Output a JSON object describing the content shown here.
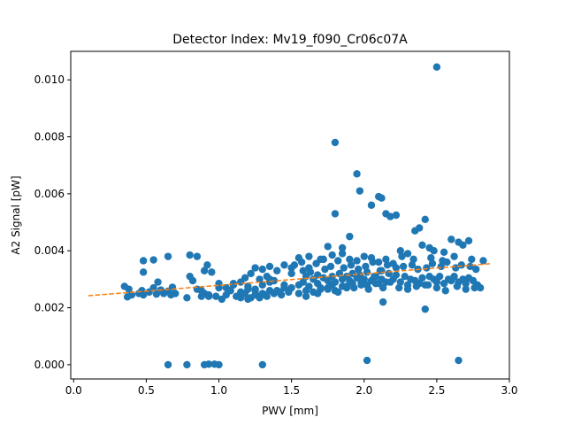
{
  "chart_data": {
    "type": "scatter",
    "title": "Detector Index: Mv19_f090_Cr06c07A",
    "xlabel": "PWV [mm]",
    "ylabel": "A2 Signal [pW]",
    "xlim": [
      -0.02,
      3.0
    ],
    "ylim": [
      -0.0005,
      0.011
    ],
    "xticks": [
      0.0,
      0.5,
      1.0,
      1.5,
      2.0,
      2.5,
      3.0
    ],
    "xtick_labels": [
      "0.0",
      "0.5",
      "1.0",
      "1.5",
      "2.0",
      "2.5",
      "3.0"
    ],
    "yticks": [
      0.0,
      0.002,
      0.004,
      0.006,
      0.008,
      0.01
    ],
    "ytick_labels": [
      "0.000",
      "0.002",
      "0.004",
      "0.006",
      "0.008",
      "0.010"
    ],
    "grid": false,
    "series": [
      {
        "name": "data",
        "kind": "scatter",
        "color": "#1f77b4",
        "x": [
          0.35,
          0.37,
          0.4,
          0.38,
          0.45,
          0.47,
          0.48,
          0.52,
          0.55,
          0.57,
          0.6,
          0.62,
          0.65,
          0.67,
          0.7,
          0.48,
          0.55,
          0.65,
          0.48,
          0.58,
          0.68,
          0.78,
          0.8,
          0.85,
          0.88,
          0.9,
          0.92,
          0.95,
          0.98,
          1.0,
          0.8,
          0.85,
          0.9,
          0.93,
          1.0,
          0.82,
          0.88,
          0.93,
          1.02,
          1.05,
          1.08,
          1.1,
          1.12,
          1.15,
          1.18,
          1.2,
          1.22,
          1.25,
          1.28,
          1.3,
          1.32,
          1.35,
          1.05,
          1.1,
          1.15,
          1.2,
          1.25,
          1.3,
          1.35,
          1.18,
          1.22,
          1.28,
          1.33,
          1.38,
          1.4,
          1.42,
          1.45,
          1.25,
          1.3,
          1.35,
          1.4,
          1.45,
          1.5,
          1.2,
          1.28,
          1.33,
          1.38,
          1.43,
          1.48,
          1.15,
          1.25,
          1.35,
          1.45,
          1.5,
          1.55,
          1.58,
          1.6,
          1.62,
          1.65,
          1.68,
          1.7,
          1.72,
          1.75,
          1.78,
          1.8,
          1.52,
          1.57,
          1.62,
          1.67,
          1.72,
          1.77,
          1.82,
          1.55,
          1.6,
          1.65,
          1.7,
          1.75,
          1.8,
          1.85,
          1.5,
          1.58,
          1.63,
          1.68,
          1.73,
          1.78,
          1.83,
          1.55,
          1.62,
          1.7,
          1.78,
          1.85,
          1.6,
          1.68,
          1.75,
          1.82,
          1.88,
          1.85,
          1.88,
          1.9,
          1.92,
          1.95,
          1.98,
          2.0,
          2.02,
          2.05,
          2.08,
          2.1,
          2.12,
          2.15,
          1.86,
          1.91,
          1.96,
          2.01,
          2.06,
          2.11,
          2.16,
          1.88,
          1.93,
          1.98,
          2.03,
          2.08,
          2.13,
          2.18,
          1.9,
          1.95,
          2.0,
          2.05,
          2.1,
          2.15,
          2.2,
          1.92,
          1.97,
          2.02,
          2.07,
          2.12,
          2.17,
          2.22,
          2.2,
          2.25,
          2.28,
          2.3,
          2.32,
          2.35,
          2.38,
          2.4,
          2.42,
          2.45,
          2.48,
          2.5,
          2.52,
          2.55,
          2.58,
          2.6,
          2.62,
          2.65,
          2.68,
          2.7,
          2.72,
          2.75,
          2.78,
          2.8,
          2.22,
          2.27,
          2.33,
          2.37,
          2.43,
          2.47,
          2.53,
          2.57,
          2.63,
          2.67,
          2.73,
          2.77,
          2.24,
          2.3,
          2.36,
          2.44,
          2.5,
          2.56,
          2.64,
          2.7,
          2.76,
          2.26,
          2.34,
          2.46,
          2.54,
          2.62,
          2.74,
          1.8,
          1.8,
          1.95,
          1.97,
          2.05,
          2.1,
          2.12,
          2.15,
          2.18,
          2.22,
          2.35,
          2.42,
          2.38,
          2.45,
          2.48,
          2.55,
          2.6,
          2.65,
          2.68,
          2.72,
          2.82,
          1.75,
          1.85,
          1.9,
          2.25,
          2.4,
          2.3,
          2.5,
          0.65,
          0.78,
          0.9,
          0.93,
          0.97,
          1.0,
          1.3,
          2.02,
          2.65,
          2.42,
          2.13
        ],
        "y": [
          0.00275,
          0.00238,
          0.00245,
          0.00265,
          0.0025,
          0.0026,
          0.00245,
          0.00255,
          0.0027,
          0.00248,
          0.00262,
          0.0025,
          0.00258,
          0.00245,
          0.0025,
          0.00365,
          0.00368,
          0.0038,
          0.00325,
          0.0029,
          0.00272,
          0.00235,
          0.00385,
          0.0038,
          0.0024,
          0.0033,
          0.0035,
          0.00325,
          0.0024,
          0.0027,
          0.0031,
          0.00265,
          0.0025,
          0.00245,
          0.00285,
          0.00295,
          0.0026,
          0.0024,
          0.0023,
          0.00245,
          0.0026,
          0.0028,
          0.0024,
          0.00235,
          0.0025,
          0.00265,
          0.00235,
          0.00245,
          0.0024,
          0.0025,
          0.00245,
          0.0026,
          0.0027,
          0.00285,
          0.0029,
          0.00275,
          0.00265,
          0.0028,
          0.0029,
          0.00305,
          0.0032,
          0.003,
          0.0031,
          0.00295,
          0.0026,
          0.00255,
          0.0027,
          0.0034,
          0.00335,
          0.00345,
          0.0033,
          0.0035,
          0.0034,
          0.0023,
          0.00235,
          0.0024,
          0.0025,
          0.00245,
          0.00255,
          0.00255,
          0.0026,
          0.003,
          0.0028,
          0.0027,
          0.0028,
          0.0029,
          0.0031,
          0.00275,
          0.003,
          0.00285,
          0.0027,
          0.00305,
          0.00295,
          0.0028,
          0.0029,
          0.0035,
          0.0036,
          0.0034,
          0.00355,
          0.0037,
          0.00345,
          0.00365,
          0.0025,
          0.0026,
          0.00255,
          0.00265,
          0.0027,
          0.0026,
          0.00275,
          0.0032,
          0.0033,
          0.00325,
          0.00315,
          0.00335,
          0.0031,
          0.0032,
          0.00375,
          0.0038,
          0.0037,
          0.00385,
          0.0039,
          0.0024,
          0.0025,
          0.00265,
          0.00255,
          0.0027,
          0.003,
          0.0031,
          0.00295,
          0.00285,
          0.00305,
          0.0029,
          0.003,
          0.0028,
          0.00295,
          0.0031,
          0.00285,
          0.003,
          0.0029,
          0.0034,
          0.0035,
          0.00335,
          0.00345,
          0.0036,
          0.0033,
          0.0035,
          0.00275,
          0.0027,
          0.0028,
          0.00265,
          0.00285,
          0.0027,
          0.0029,
          0.0037,
          0.00365,
          0.0038,
          0.00375,
          0.0036,
          0.0037,
          0.00355,
          0.0032,
          0.00315,
          0.00325,
          0.0031,
          0.0033,
          0.0032,
          0.00315,
          0.003,
          0.0029,
          0.0031,
          0.0028,
          0.003,
          0.00295,
          0.00285,
          0.00305,
          0.0028,
          0.0031,
          0.003,
          0.0029,
          0.0031,
          0.00285,
          0.003,
          0.00295,
          0.0031,
          0.0029,
          0.003,
          0.00285,
          0.00305,
          0.00295,
          0.0028,
          0.0027,
          0.0034,
          0.00345,
          0.0035,
          0.00335,
          0.0034,
          0.00355,
          0.00345,
          0.0036,
          0.0034,
          0.0035,
          0.00345,
          0.00335,
          0.0027,
          0.00265,
          0.00275,
          0.0028,
          0.0027,
          0.0026,
          0.00275,
          0.00265,
          0.0027,
          0.0038,
          0.0037,
          0.00375,
          0.00365,
          0.0038,
          0.0037,
          0.0078,
          0.0053,
          0.0067,
          0.0061,
          0.0056,
          0.0059,
          0.00585,
          0.0053,
          0.0052,
          0.00525,
          0.0047,
          0.0051,
          0.0048,
          0.0041,
          0.004,
          0.00395,
          0.0044,
          0.0043,
          0.0042,
          0.00435,
          0.00365,
          0.00415,
          0.0041,
          0.0045,
          0.004,
          0.0042,
          0.0039,
          0.01045,
          0.0,
          0.0,
          0.0,
          2e-05,
          2e-05,
          0.0,
          0.0,
          0.00015,
          0.00015,
          0.00195,
          0.0022
        ]
      },
      {
        "name": "fit",
        "kind": "line",
        "style": "dashed",
        "color": "#ff7f0e",
        "x": [
          0.1,
          2.88
        ],
        "y": [
          0.00242,
          0.00355
        ]
      }
    ]
  }
}
